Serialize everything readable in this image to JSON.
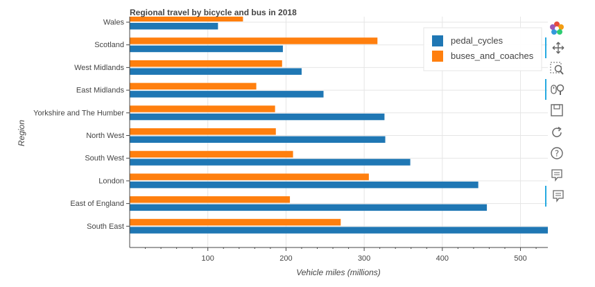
{
  "chart_data": {
    "type": "bar",
    "orientation": "horizontal",
    "title": "Regional travel by bicycle and bus in 2018",
    "xlabel": "Vehicle miles (millions)",
    "ylabel": "Region",
    "xlim": [
      0,
      535
    ],
    "xticks": [
      "100",
      "200",
      "300",
      "400",
      "500"
    ],
    "xtick_values": [
      100,
      200,
      300,
      400,
      500
    ],
    "categories": [
      "South East",
      "East of England",
      "London",
      "South West",
      "North West",
      "Yorkshire and The Humber",
      "East Midlands",
      "West Midlands",
      "Scotland",
      "Wales"
    ],
    "series": [
      {
        "name": "pedal_cycles",
        "color": "#1f77b4",
        "values": [
          535,
          457,
          446,
          359,
          327,
          326,
          248,
          220,
          196,
          113
        ]
      },
      {
        "name": "buses_and_coaches",
        "color": "#ff7f0e",
        "values": [
          270,
          205,
          306,
          209,
          187,
          186,
          162,
          195,
          317,
          145
        ]
      }
    ],
    "legend_position": "top-right",
    "grid": true
  },
  "toolbar": {
    "tools": [
      {
        "name": "bokeh-logo-icon",
        "active": false
      },
      {
        "name": "pan-tool-icon",
        "active": true
      },
      {
        "name": "box-zoom-tool-icon",
        "active": false
      },
      {
        "name": "wheel-zoom-tool-icon",
        "active": true
      },
      {
        "name": "save-tool-icon",
        "active": false
      },
      {
        "name": "reset-tool-icon",
        "active": false
      },
      {
        "name": "help-tool-icon",
        "active": false
      },
      {
        "name": "hover-tool-icon",
        "active": false
      },
      {
        "name": "hover-tool-icon",
        "active": true
      }
    ]
  }
}
